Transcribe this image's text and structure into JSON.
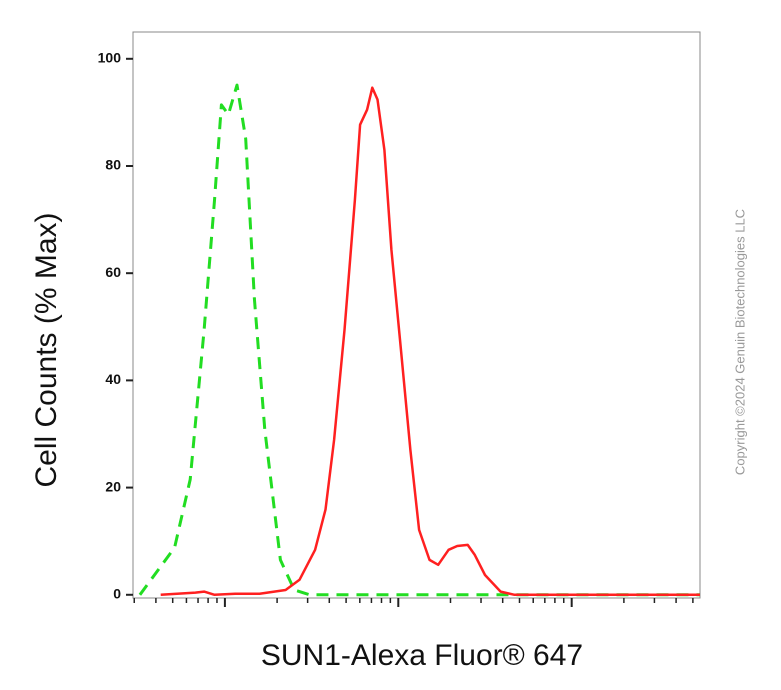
{
  "chart_data": {
    "type": "line",
    "x_label": "SUN1-Alexa Fluor® 647",
    "y_label": "Cell Counts (% Max)",
    "annotation": "Copyright ©2024 Genuin Biotechnologies LLC",
    "xlim": [
      0.47,
      3.74
    ],
    "xticks": [
      1,
      2,
      3
    ],
    "minor_ticks": true,
    "ylim": [
      -0.6,
      105
    ],
    "yticks": [
      0,
      20,
      40,
      60,
      80,
      100
    ],
    "series": [
      {
        "color": "#22dd22",
        "dashed": true,
        "x": [
          0.51,
          0.71,
          0.8,
          0.88,
          0.94,
          0.98,
          1.02,
          1.07,
          1.12,
          1.17,
          1.23,
          1.32,
          1.4,
          1.49,
          2.0,
          3.0,
          3.74
        ],
        "values": [
          0,
          8.8,
          21.5,
          49.4,
          73.6,
          91.4,
          89.6,
          95.1,
          85.1,
          55.2,
          30.8,
          6.5,
          0.9,
          0,
          0,
          0,
          0
        ]
      },
      {
        "color": "#ff2020",
        "dashed": false,
        "x": [
          0.63,
          0.83,
          0.88,
          0.94,
          1.06,
          1.2,
          1.35,
          1.43,
          1.52,
          1.58,
          1.63,
          1.69,
          1.75,
          1.78,
          1.82,
          1.85,
          1.88,
          1.92,
          1.96,
          2.01,
          2.07,
          2.12,
          2.18,
          2.23,
          2.29,
          2.34,
          2.4,
          2.44,
          2.5,
          2.59,
          2.67,
          3.74
        ],
        "values": [
          0,
          0.4,
          0.6,
          0,
          0.2,
          0.2,
          0.9,
          2.8,
          8.4,
          15.9,
          28.9,
          49.4,
          73.7,
          87.7,
          90.5,
          94.6,
          92.4,
          83,
          64.4,
          47.6,
          27,
          12.1,
          6.5,
          5.6,
          8.4,
          9.1,
          9.3,
          7.5,
          3.7,
          0.6,
          0,
          0
        ]
      }
    ]
  }
}
